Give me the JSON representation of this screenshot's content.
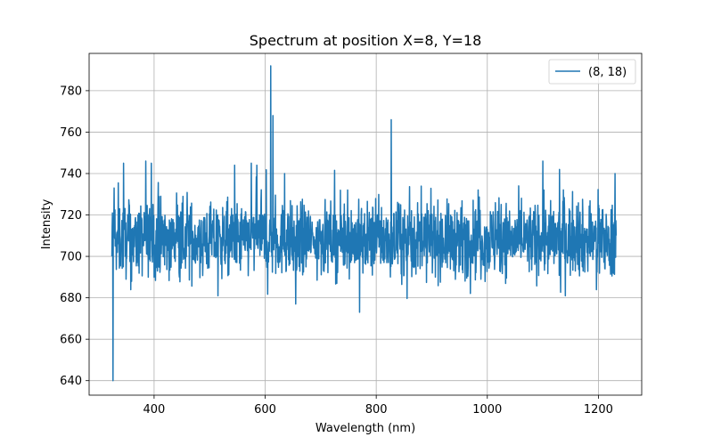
{
  "chart_data": {
    "type": "line",
    "title": "Spectrum at position X=8, Y=18",
    "xlabel": "Wavelength (nm)",
    "ylabel": "Intensity",
    "xlim": [
      283,
      1278
    ],
    "ylim": [
      633,
      798
    ],
    "xticks": [
      400,
      600,
      800,
      1000,
      1200
    ],
    "yticks": [
      640,
      660,
      680,
      700,
      720,
      740,
      760,
      780
    ],
    "grid": true,
    "legend_position": "top-right",
    "series": [
      {
        "name": "(8, 18)",
        "color": "#1f77b4",
        "x_start": 324,
        "x_end": 1232,
        "baseline": 708,
        "points": [
          [
            324,
            700
          ],
          [
            325,
            721
          ],
          [
            326,
            640
          ],
          [
            327,
            715
          ],
          [
            328,
            733
          ],
          [
            330,
            705
          ],
          [
            345,
            745
          ],
          [
            385,
            746
          ],
          [
            395,
            745
          ],
          [
            545,
            744
          ],
          [
            575,
            745
          ],
          [
            585,
            744
          ],
          [
            608,
            715
          ],
          [
            610,
            792
          ],
          [
            612,
            700
          ],
          [
            614,
            768
          ],
          [
            616,
            710
          ],
          [
            635,
            740
          ],
          [
            655,
            677
          ],
          [
            770,
            673
          ],
          [
            827,
            766
          ],
          [
            830,
            705
          ],
          [
            1100,
            746
          ],
          [
            1130,
            742
          ],
          [
            1230,
            740
          ],
          [
            1232,
            710
          ]
        ]
      }
    ]
  }
}
